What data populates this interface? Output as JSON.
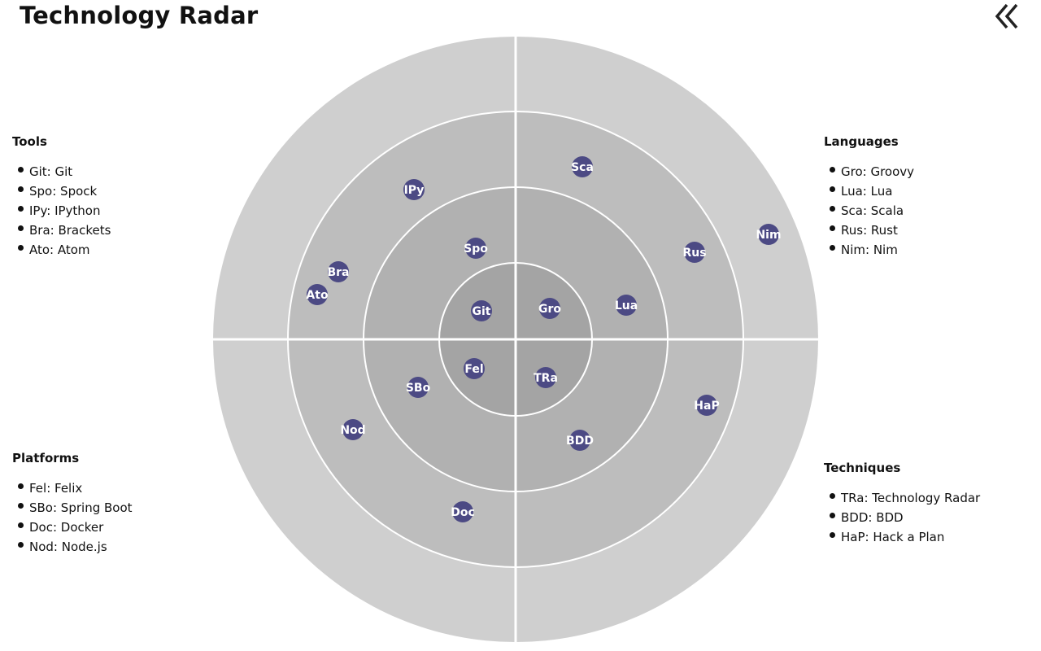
{
  "header": {
    "title": "Technology Radar"
  },
  "collapse_icon": "double-chevron-left-icon",
  "colors": {
    "ring_outer": "#cfcfcf",
    "ring_3": "#bdbdbd",
    "ring_2": "#b1b1b1",
    "ring_inner": "#a4a4a4",
    "divider": "#ffffff",
    "blip": "#4c4a84",
    "blip_text": "#ffffff"
  },
  "quadrants": [
    {
      "id": "tools",
      "title": "Tools",
      "items": [
        {
          "label": "Git: Git"
        },
        {
          "label": "Spo: Spock"
        },
        {
          "label": "IPy: IPython"
        },
        {
          "label": "Bra: Brackets"
        },
        {
          "label": "Ato: Atom"
        }
      ]
    },
    {
      "id": "languages",
      "title": "Languages",
      "items": [
        {
          "label": "Gro: Groovy"
        },
        {
          "label": "Lua: Lua"
        },
        {
          "label": "Sca: Scala"
        },
        {
          "label": "Rus: Rust"
        },
        {
          "label": "Nim: Nim"
        }
      ]
    },
    {
      "id": "platforms",
      "title": "Platforms",
      "items": [
        {
          "label": "Fel: Felix"
        },
        {
          "label": "SBo: Spring Boot"
        },
        {
          "label": "Doc: Docker"
        },
        {
          "label": "Nod: Node.js"
        }
      ]
    },
    {
      "id": "techniques",
      "title": "Techniques",
      "items": [
        {
          "label": "TRa: Technology Radar"
        },
        {
          "label": "BDD: BDD"
        },
        {
          "label": "HaP: Hack a Plan"
        }
      ]
    }
  ],
  "blips": [
    {
      "code": "Git",
      "quadrant": "tools"
    },
    {
      "code": "Spo",
      "quadrant": "tools"
    },
    {
      "code": "IPy",
      "quadrant": "tools"
    },
    {
      "code": "Bra",
      "quadrant": "tools"
    },
    {
      "code": "Ato",
      "quadrant": "tools"
    },
    {
      "code": "Gro",
      "quadrant": "languages"
    },
    {
      "code": "Lua",
      "quadrant": "languages"
    },
    {
      "code": "Sca",
      "quadrant": "languages"
    },
    {
      "code": "Rus",
      "quadrant": "languages"
    },
    {
      "code": "Nim",
      "quadrant": "languages"
    },
    {
      "code": "Fel",
      "quadrant": "platforms"
    },
    {
      "code": "SBo",
      "quadrant": "platforms"
    },
    {
      "code": "Doc",
      "quadrant": "platforms"
    },
    {
      "code": "Nod",
      "quadrant": "platforms"
    },
    {
      "code": "TRa",
      "quadrant": "techniques"
    },
    {
      "code": "BDD",
      "quadrant": "techniques"
    },
    {
      "code": "HaP",
      "quadrant": "techniques"
    }
  ]
}
